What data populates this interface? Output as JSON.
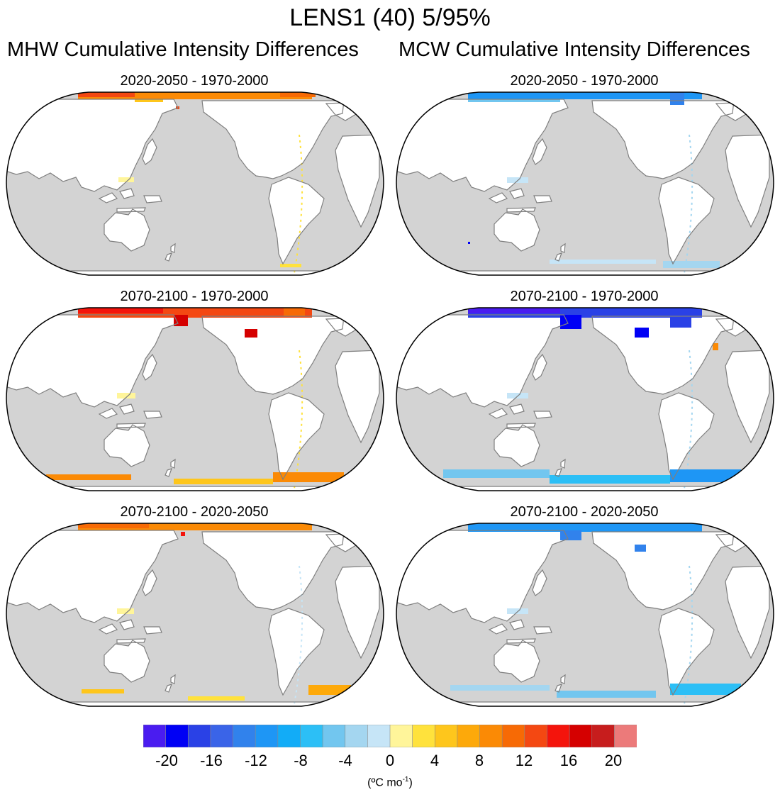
{
  "figure": {
    "title": "LENS1 (40) 5/95%",
    "column_titles": [
      "MHW Cumulative Intensity Differences",
      "MCW Cumulative Intensity Differences"
    ],
    "panels": [
      {
        "id": "mhw-1",
        "column": "MHW",
        "label": "2020-2050 - 1970-2000"
      },
      {
        "id": "mcw-1",
        "column": "MCW",
        "label": "2020-2050 - 1970-2000"
      },
      {
        "id": "mhw-2",
        "column": "MHW",
        "label": "2070-2100 - 1970-2000"
      },
      {
        "id": "mcw-2",
        "column": "MCW",
        "label": "2070-2100 - 1970-2000"
      },
      {
        "id": "mhw-3",
        "column": "MHW",
        "label": "2070-2100 - 2020-2050"
      },
      {
        "id": "mcw-3",
        "column": "MCW",
        "label": "2070-2100 - 2020-2050"
      }
    ]
  },
  "colorbar": {
    "tick_labels": [
      "-20",
      "-16",
      "-12",
      "-8",
      "-4",
      "0",
      "4",
      "8",
      "12",
      "16",
      "20"
    ],
    "units_base": "(ºC mo",
    "units_exp": "-1",
    "units_close": ")",
    "colors": [
      "#4a1cf0",
      "#0000f5",
      "#2a41e6",
      "#3a64e8",
      "#3182ec",
      "#1e96f5",
      "#12acf7",
      "#2cbff6",
      "#72c6ef",
      "#a4d6f0",
      "#c6e5f7",
      "#fff59a",
      "#ffe23c",
      "#fec61c",
      "#fda90a",
      "#fb8a05",
      "#f76a05",
      "#f44812",
      "#f4140c",
      "#d50000",
      "#c71d1d",
      "#ec7a7a"
    ]
  },
  "map_style": {
    "land_color": "#ffffff",
    "ocean_color": "#d3d3d3",
    "coast_color": "#7f7f7f"
  }
}
